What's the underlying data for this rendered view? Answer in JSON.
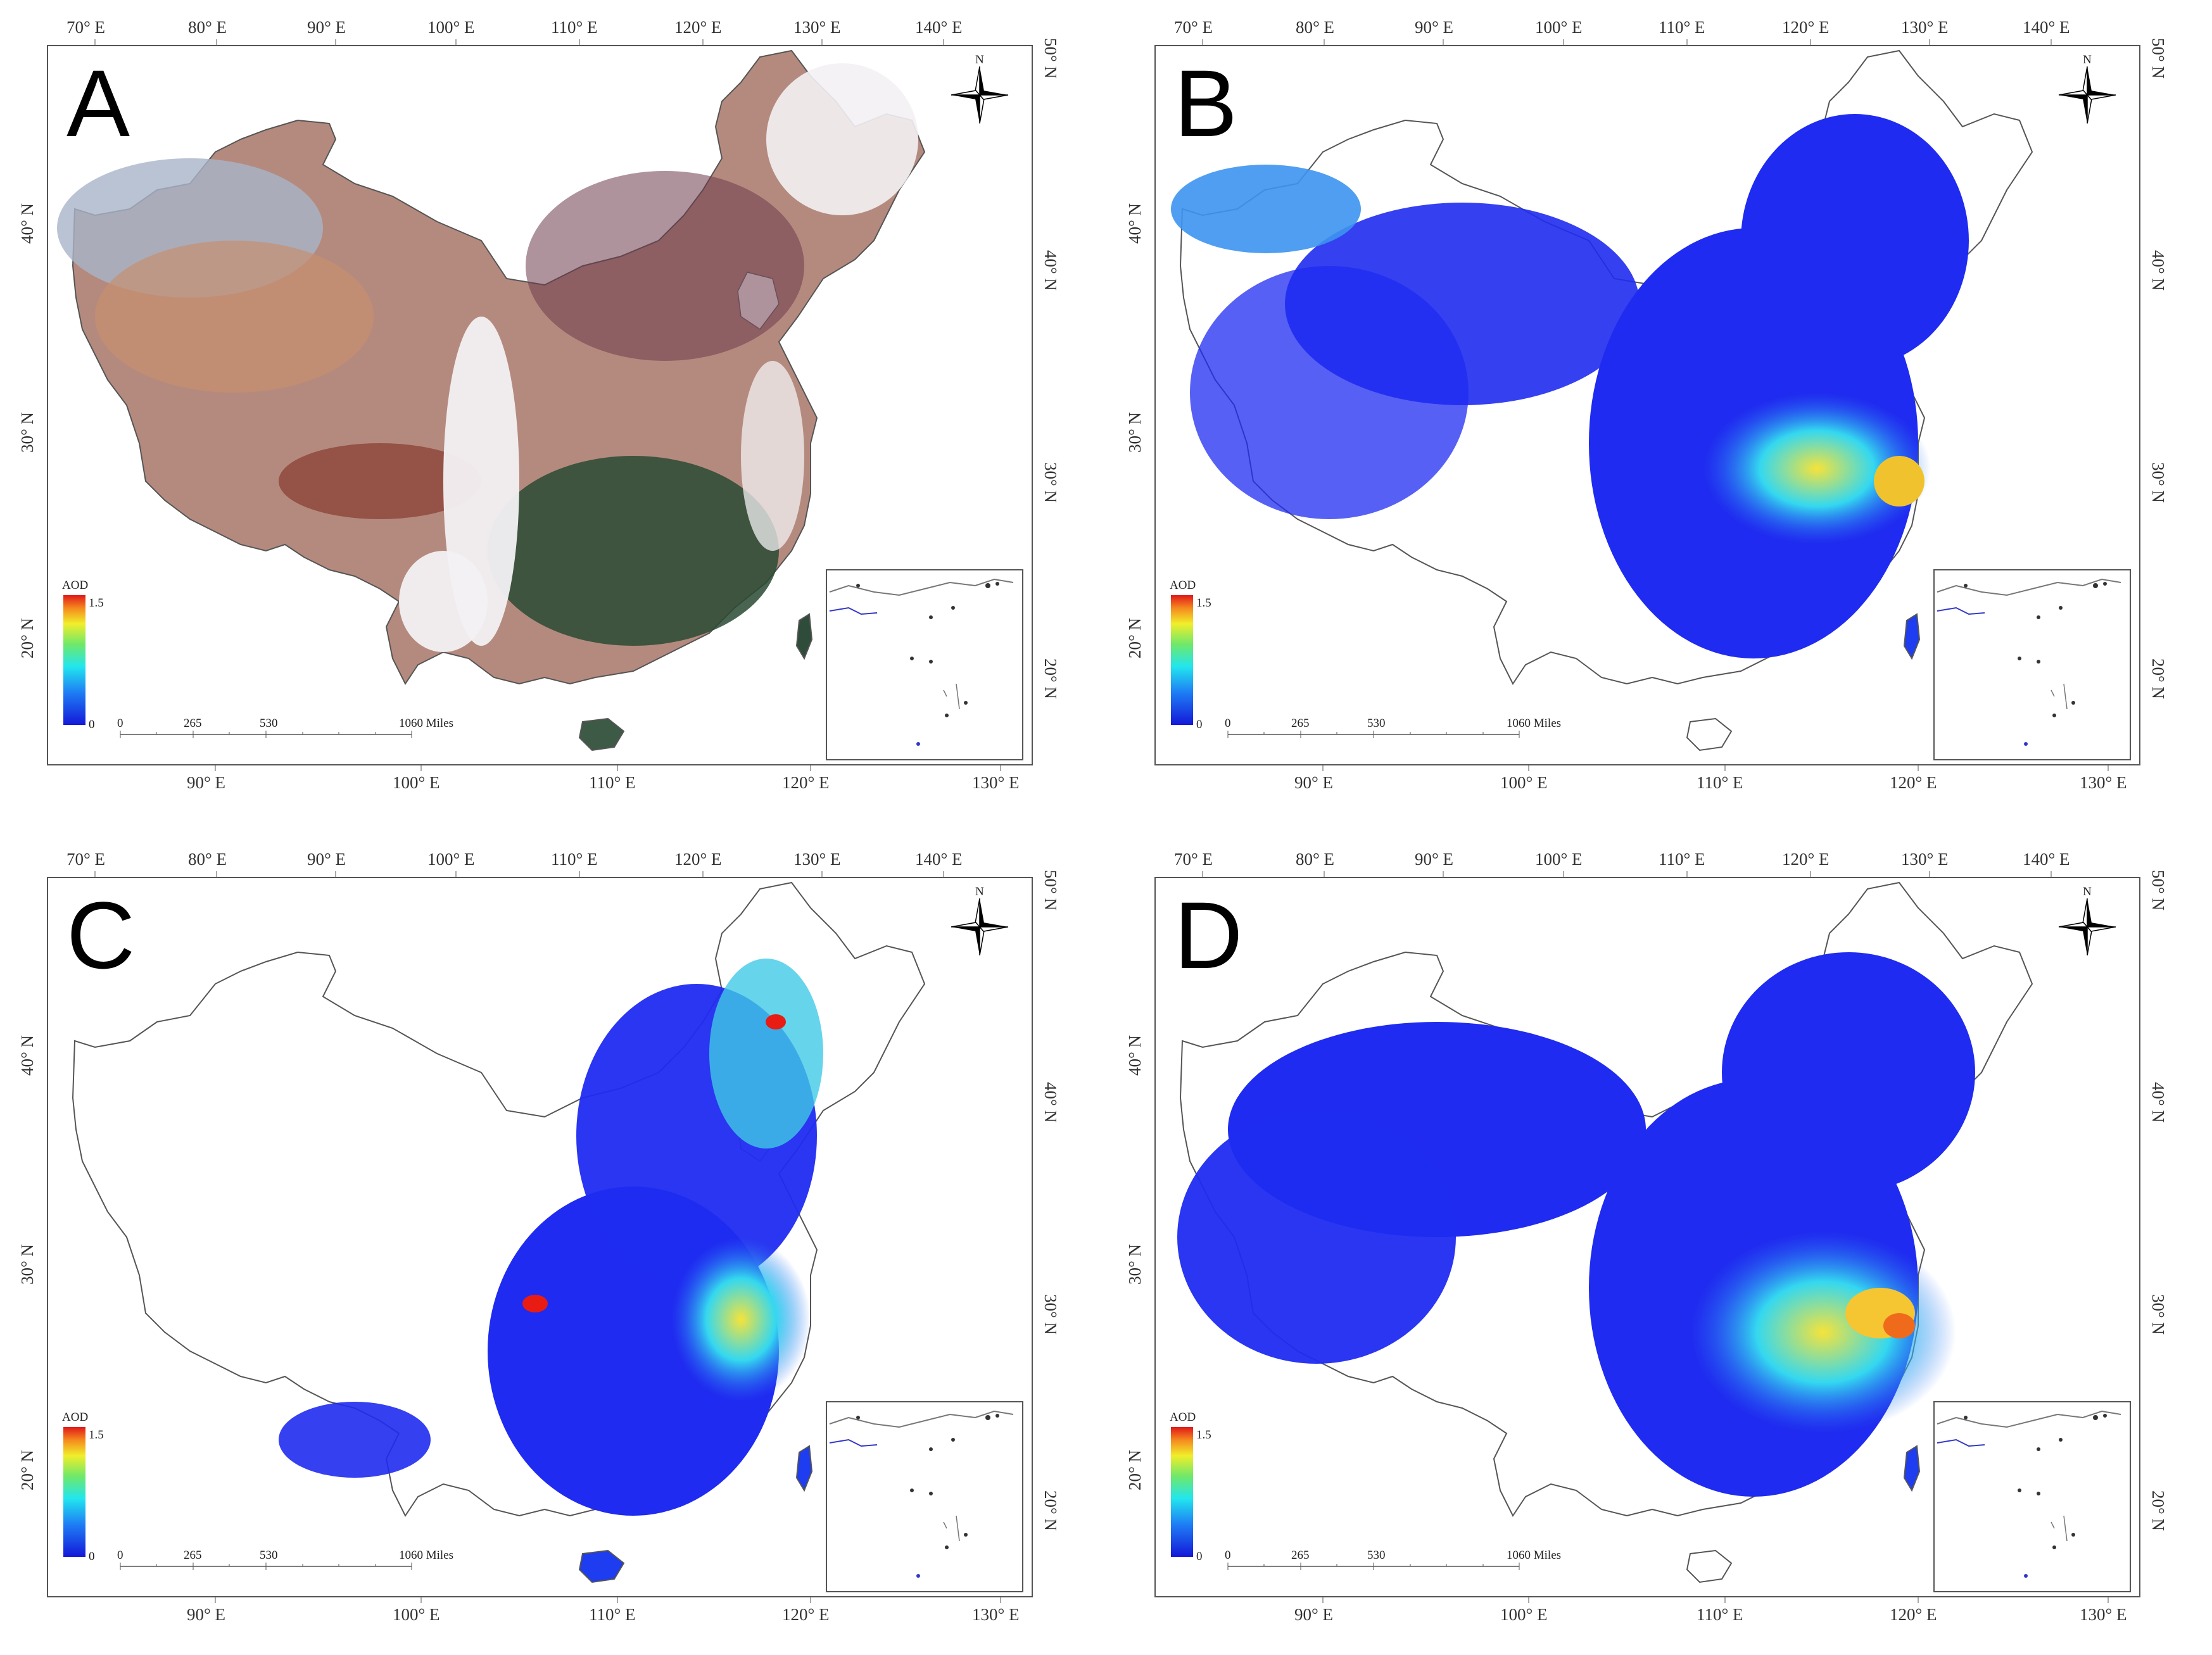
{
  "panels": [
    {
      "label": "A",
      "type": "true-color"
    },
    {
      "label": "B",
      "type": "aod"
    },
    {
      "label": "C",
      "type": "aod"
    },
    {
      "label": "D",
      "type": "aod"
    }
  ],
  "top_axis_labels": [
    "70° E",
    "80° E",
    "90° E",
    "100° E",
    "110° E",
    "120° E",
    "130° E",
    "140° E"
  ],
  "bottom_axis_labels": [
    "90° E",
    "100° E",
    "110° E",
    "120° E",
    "130° E"
  ],
  "left_axis_labels": [
    "40° N",
    "30° N",
    "20° N"
  ],
  "right_axis_labels": [
    "50° N",
    "40° N",
    "30° N",
    "20° N"
  ],
  "compass_label": "N",
  "legend": {
    "title": "AOD",
    "max": "1.5",
    "min": "0"
  },
  "scale_bar": {
    "ticks": [
      "0",
      "265",
      "530",
      "1060 Miles"
    ]
  },
  "colors": {
    "aod_low": "#1f2bf0",
    "aod_mid": "#1ce0f0",
    "aod_high": "#e81c12",
    "true_color_land": "#b58a7e",
    "cloud": "#f3f1f4"
  }
}
